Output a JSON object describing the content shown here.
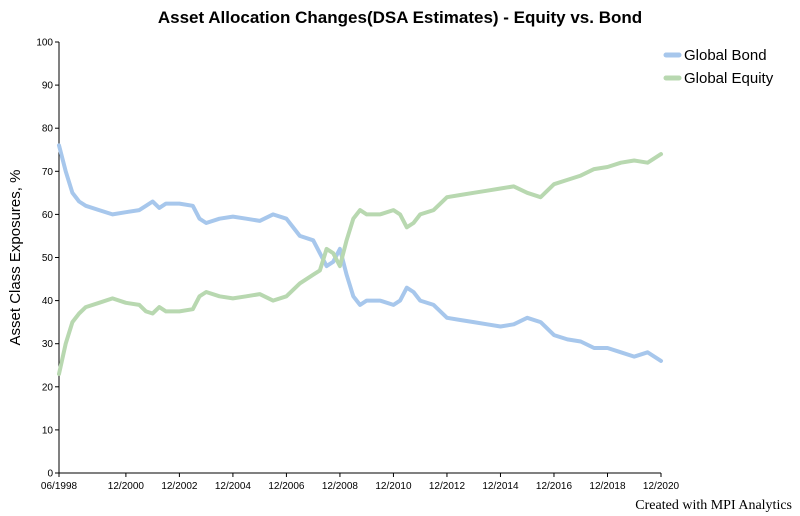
{
  "chart_data": {
    "type": "line",
    "title": "Asset Allocation Changes(DSA Estimates) - Equity vs. Bond",
    "xlabel": "",
    "ylabel": "Asset Class Exposures, %",
    "ylim": [
      0,
      100
    ],
    "yticks": [
      0,
      10,
      20,
      30,
      40,
      50,
      60,
      70,
      80,
      90,
      100
    ],
    "xlim": [
      "1998-06",
      "2020-12"
    ],
    "xticks": [
      "06/1998",
      "12/2000",
      "12/2002",
      "12/2004",
      "12/2006",
      "12/2008",
      "12/2010",
      "12/2012",
      "12/2014",
      "12/2016",
      "12/2018",
      "12/2020"
    ],
    "grid": false,
    "legend_position": "top-right",
    "x": [
      "1998-06",
      "1998-09",
      "1998-12",
      "1999-03",
      "1999-06",
      "1999-12",
      "2000-06",
      "2000-12",
      "2001-06",
      "2001-09",
      "2001-12",
      "2002-03",
      "2002-06",
      "2002-12",
      "2003-06",
      "2003-09",
      "2003-12",
      "2004-06",
      "2004-12",
      "2005-06",
      "2005-12",
      "2006-06",
      "2006-12",
      "2007-06",
      "2007-12",
      "2008-03",
      "2008-06",
      "2008-09",
      "2008-12",
      "2009-03",
      "2009-06",
      "2009-09",
      "2009-12",
      "2010-06",
      "2010-12",
      "2011-03",
      "2011-06",
      "2011-09",
      "2011-12",
      "2012-06",
      "2012-12",
      "2013-06",
      "2013-12",
      "2014-06",
      "2014-12",
      "2015-06",
      "2015-12",
      "2016-06",
      "2016-12",
      "2017-06",
      "2017-12",
      "2018-06",
      "2018-12",
      "2019-06",
      "2019-12",
      "2020-06",
      "2020-12"
    ],
    "series": [
      {
        "name": "Global Bond",
        "color": "#a7c7ec",
        "values": [
          76,
          70,
          65,
          63,
          62,
          61,
          60,
          60.5,
          61,
          62,
          63,
          61.5,
          62.5,
          62.5,
          62,
          59,
          58,
          59,
          59.5,
          59,
          58.5,
          60,
          59,
          55,
          54,
          51,
          48,
          49,
          52,
          46,
          41,
          39,
          40,
          40,
          39,
          40,
          43,
          42,
          40,
          39,
          36,
          35.5,
          35,
          34.5,
          34,
          34.5,
          36,
          35,
          32,
          31,
          30.5,
          29,
          29,
          28,
          27,
          28,
          26
        ]
      },
      {
        "name": "Global Equity",
        "color": "#b8d8b0",
        "values": [
          23,
          30,
          35,
          37,
          38.5,
          39.5,
          40.5,
          39.5,
          39,
          37.5,
          37,
          38.5,
          37.5,
          37.5,
          38,
          41,
          42,
          41,
          40.5,
          41,
          41.5,
          40,
          41,
          44,
          46,
          47,
          52,
          51,
          48,
          54,
          59,
          61,
          60,
          60,
          61,
          60,
          57,
          58,
          60,
          61,
          64,
          64.5,
          65,
          65.5,
          66,
          66.5,
          65,
          64,
          67,
          68,
          69,
          70.5,
          71,
          72,
          72.5,
          72,
          74
        ]
      }
    ]
  },
  "credit": "Created with MPI Analytics"
}
